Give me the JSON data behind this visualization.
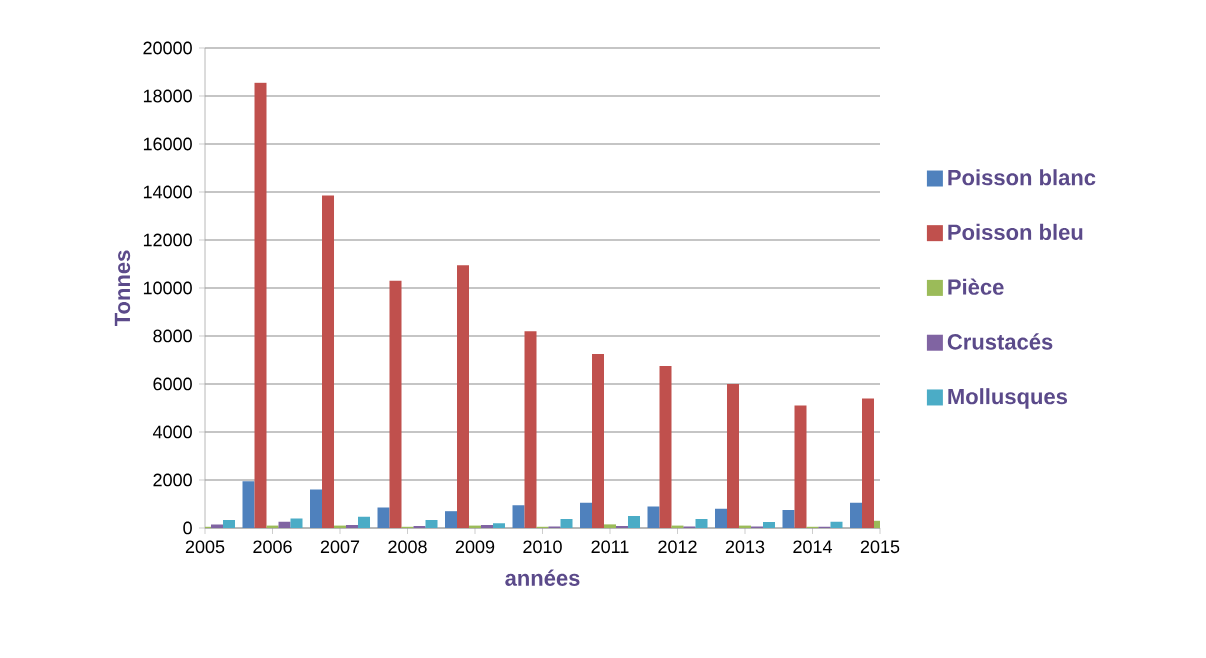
{
  "chart_data": {
    "type": "bar",
    "xlabel": "années",
    "ylabel": "Tonnes",
    "categories": [
      "2005",
      "2006",
      "2007",
      "2008",
      "2009",
      "2010",
      "2011",
      "2012",
      "2013",
      "2014",
      "2015"
    ],
    "series": [
      {
        "name": "Poisson blanc",
        "color": "#4f81bd",
        "values": [
          null,
          1950,
          1600,
          850,
          700,
          950,
          1050,
          900,
          800,
          750,
          1050
        ]
      },
      {
        "name": "Poisson bleu",
        "color": "#c0504d",
        "values": [
          null,
          18550,
          13850,
          10300,
          10950,
          8200,
          7250,
          6750,
          6000,
          5100,
          5400
        ]
      },
      {
        "name": "Pièce",
        "color": "#9bbb59",
        "values": [
          50,
          100,
          100,
          50,
          100,
          50,
          150,
          100,
          100,
          50,
          300
        ]
      },
      {
        "name": "Crustacés",
        "color": "#8064a2",
        "values": [
          150,
          260,
          120,
          80,
          120,
          60,
          80,
          60,
          60,
          50,
          null
        ]
      },
      {
        "name": "Mollusques",
        "color": "#4bacc6",
        "values": [
          330,
          400,
          470,
          330,
          200,
          370,
          500,
          370,
          250,
          260,
          null
        ]
      }
    ],
    "ylim": [
      0,
      20000
    ],
    "yticks": [
      0,
      2000,
      4000,
      6000,
      8000,
      10000,
      12000,
      14000,
      16000,
      18000,
      20000
    ],
    "grid": "y",
    "legend": "right"
  }
}
